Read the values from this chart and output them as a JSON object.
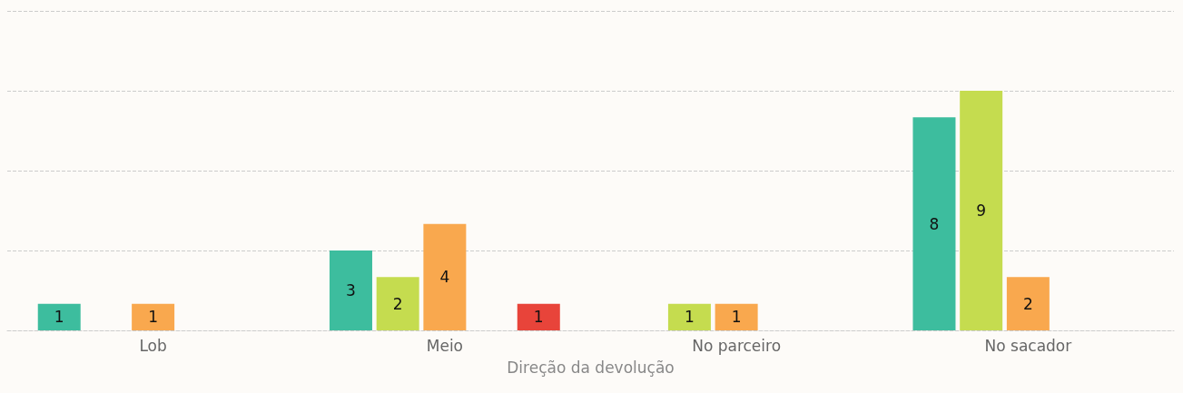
{
  "chart_data": {
    "type": "bar",
    "xlabel": "Direção da devolução",
    "categories": [
      "Lob",
      "Meio",
      "No parceiro",
      "No sacador"
    ],
    "series": [
      {
        "color": "#3dbd9e",
        "values": [
          1,
          3,
          null,
          8
        ]
      },
      {
        "color": "#c5dc4f",
        "values": [
          null,
          2,
          1,
          9
        ]
      },
      {
        "color": "#f9a84e",
        "values": [
          1,
          4,
          1,
          2
        ]
      },
      {
        "values": [
          null,
          null,
          null,
          null
        ]
      },
      {
        "color": "#e8443a",
        "values": [
          null,
          1,
          null,
          null
        ]
      }
    ],
    "ylim": [
      0,
      12
    ],
    "yticks": [
      {
        "value": 0,
        "label": null
      },
      {
        "value": 3,
        "label": null
      },
      {
        "value": 6,
        "label": null
      },
      {
        "value": 9,
        "label": null
      },
      {
        "value": 12,
        "label": null
      }
    ],
    "grid": "y",
    "data_labels": true
  }
}
